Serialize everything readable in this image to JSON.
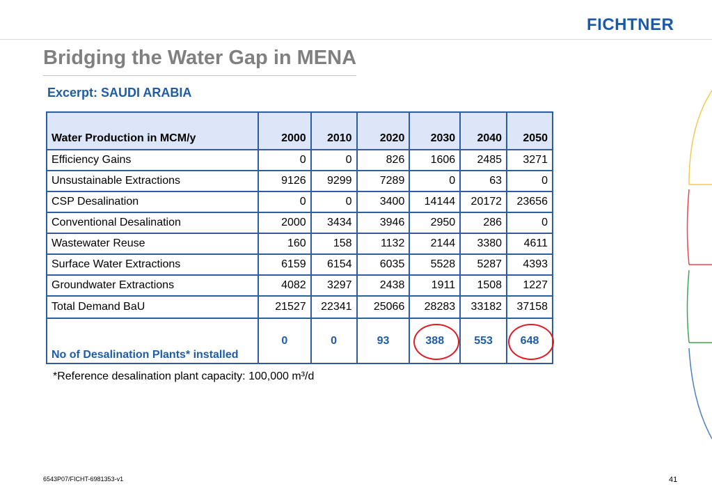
{
  "header": {
    "logo_text": "FICHTNER",
    "title": "Bridging the Water Gap in MENA",
    "subtitle": "Excerpt: SAUDI ARABIA"
  },
  "table": {
    "header_label": "Water Production in MCM/y",
    "years": [
      "2000",
      "2010",
      "2020",
      "2030",
      "2040",
      "2050"
    ],
    "rows": [
      {
        "label": "Efficiency Gains",
        "values": [
          "0",
          "0",
          "826",
          "1606",
          "2485",
          "3271"
        ]
      },
      {
        "label": "Unsustainable Extractions",
        "values": [
          "9126",
          "9299",
          "7289",
          "0",
          "63",
          "0"
        ]
      },
      {
        "label": "CSP Desalination",
        "values": [
          "0",
          "0",
          "3400",
          "14144",
          "20172",
          "23656"
        ]
      },
      {
        "label": "Conventional Desalination",
        "values": [
          "2000",
          "3434",
          "3946",
          "2950",
          "286",
          "0"
        ]
      },
      {
        "label": "Wastewater Reuse",
        "values": [
          "160",
          "158",
          "1132",
          "2144",
          "3380",
          "4611"
        ]
      },
      {
        "label": "Surface Water Extractions",
        "values": [
          "6159",
          "6154",
          "6035",
          "5528",
          "5287",
          "4393"
        ]
      },
      {
        "label": "Groundwater Extractions",
        "values": [
          "4082",
          "3297",
          "2438",
          "1911",
          "1508",
          "1227"
        ]
      },
      {
        "label": "Total Demand BaU",
        "values": [
          "21527",
          "22341",
          "25066",
          "28283",
          "33182",
          "37158"
        ]
      }
    ],
    "plants_row": {
      "label": "No of Desalination Plants* installed",
      "values": [
        "0",
        "0",
        "93",
        "388",
        "553",
        "648"
      ]
    }
  },
  "footnote": "*Reference desalination plant capacity: 100,000 m³/d",
  "footer": {
    "doc_id": "6543P07/FICHT-6981353-v1",
    "page_number": "41"
  },
  "colors": {
    "brand_blue": "#1f5ca8",
    "title_gray": "#808080",
    "header_fill": "#dce6f8",
    "highlight_red": "#e01b24"
  }
}
